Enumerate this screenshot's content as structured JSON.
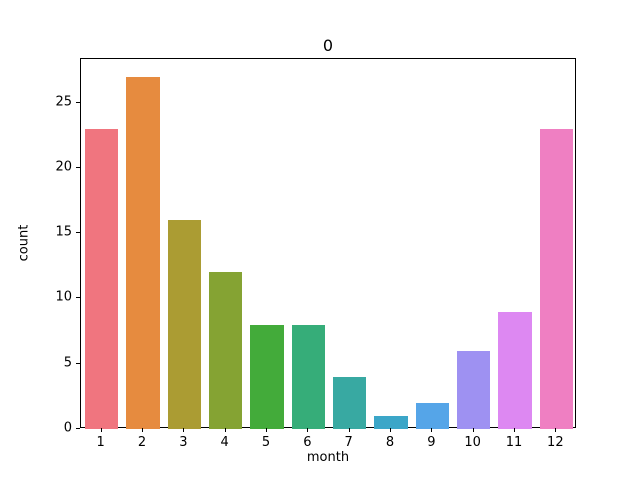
{
  "chart_data": {
    "type": "bar",
    "title": "0",
    "xlabel": "month",
    "ylabel": "count",
    "categories": [
      "1",
      "2",
      "3",
      "4",
      "5",
      "6",
      "7",
      "8",
      "9",
      "10",
      "11",
      "12"
    ],
    "values": [
      23,
      27,
      16,
      12,
      8,
      8,
      4,
      1,
      2,
      6,
      9,
      23
    ],
    "colors": [
      "#f0757f",
      "#e68b3f",
      "#ab9c33",
      "#85a333",
      "#43ab3a",
      "#36ad79",
      "#38a9a2",
      "#3ba6c8",
      "#55a5e8",
      "#9e91f2",
      "#dd88f2",
      "#ef7fc2"
    ],
    "yticks": [
      0,
      5,
      10,
      15,
      20,
      25
    ],
    "ylim": [
      0,
      28.35
    ],
    "bar_width_frac": 0.8,
    "grid": "off",
    "legend": "none"
  }
}
